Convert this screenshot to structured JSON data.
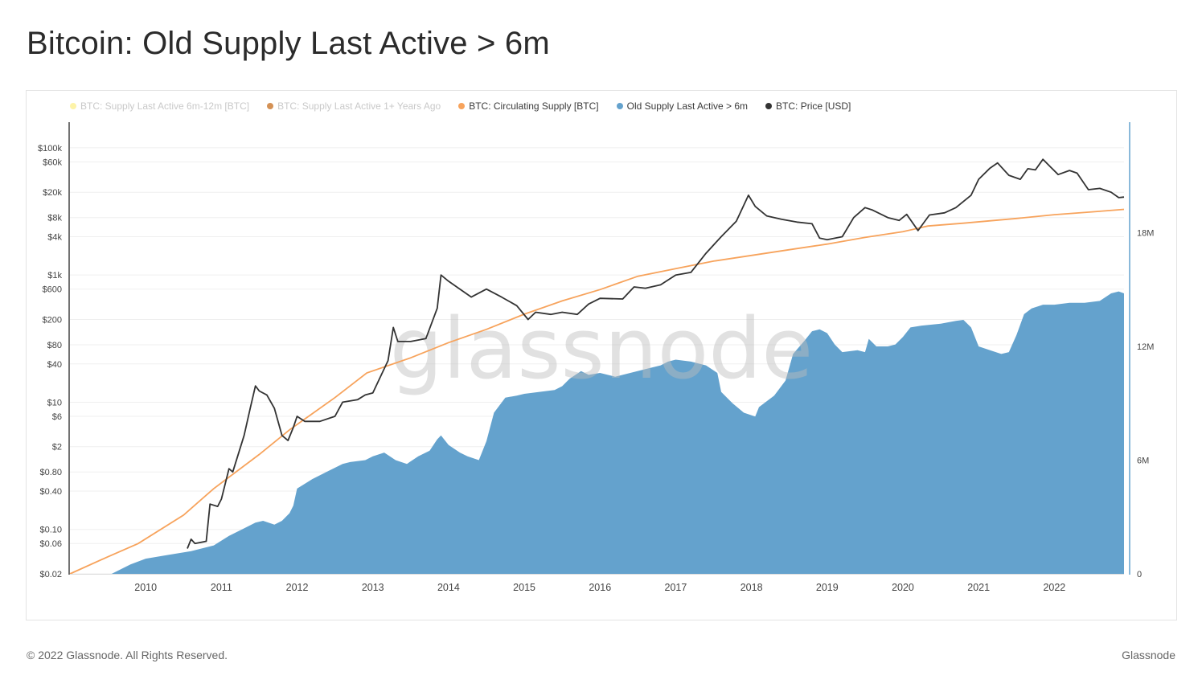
{
  "title": "Bitcoin: Old Supply Last Active > 6m",
  "footer": {
    "copyright": "© 2022 Glassnode. All Rights Reserved.",
    "brand": "Glassnode"
  },
  "watermark": "glassnode",
  "colors": {
    "price": "#333333",
    "circulating": "#f7a35c",
    "old_supply": "#64a2cd",
    "supply_6m_12m": "#fdf3a8",
    "supply_1y": "#d49155",
    "right_axis": "#64a2cd"
  },
  "legend": [
    {
      "label": "BTC: Supply Last Active 6m-12m [BTC]",
      "color": "#fdf3a8",
      "state": "muted"
    },
    {
      "label": "BTC: Supply Last Active 1+ Years Ago",
      "color": "#d49155",
      "state": "muted"
    },
    {
      "label": "BTC: Circulating Supply [BTC]",
      "color": "#f7a35c",
      "state": "active"
    },
    {
      "label": "Old Supply Last Active > 6m",
      "color": "#64a2cd",
      "state": "active"
    },
    {
      "label": "BTC: Price [USD]",
      "color": "#333333",
      "state": "active"
    }
  ],
  "chart_data": {
    "type": "line",
    "title": "Bitcoin: Old Supply Last Active > 6m",
    "x_range": [
      2009.0,
      2022.92
    ],
    "x_ticks": [
      {
        "value": 2010,
        "label": "2010"
      },
      {
        "value": 2011,
        "label": "2011"
      },
      {
        "value": 2012,
        "label": "2012"
      },
      {
        "value": 2013,
        "label": "2013"
      },
      {
        "value": 2014,
        "label": "2014"
      },
      {
        "value": 2015,
        "label": "2015"
      },
      {
        "value": 2016,
        "label": "2016"
      },
      {
        "value": 2017,
        "label": "2017"
      },
      {
        "value": 2018,
        "label": "2018"
      },
      {
        "value": 2019,
        "label": "2019"
      },
      {
        "value": 2020,
        "label": "2020"
      },
      {
        "value": 2021,
        "label": "2021"
      },
      {
        "value": 2022,
        "label": "2022"
      }
    ],
    "left_axis": {
      "scale": "log",
      "range": [
        0.02,
        150000
      ],
      "ticks": [
        {
          "value": 100000,
          "label": "$100k"
        },
        {
          "value": 60000,
          "label": "$60k"
        },
        {
          "value": 20000,
          "label": "$20k"
        },
        {
          "value": 8000,
          "label": "$8k"
        },
        {
          "value": 4000,
          "label": "$4k"
        },
        {
          "value": 1000,
          "label": "$1k"
        },
        {
          "value": 600,
          "label": "$600"
        },
        {
          "value": 200,
          "label": "$200"
        },
        {
          "value": 80,
          "label": "$80"
        },
        {
          "value": 40,
          "label": "$40"
        },
        {
          "value": 10,
          "label": "$10"
        },
        {
          "value": 6,
          "label": "$6"
        },
        {
          "value": 2,
          "label": "$2"
        },
        {
          "value": 0.8,
          "label": "$0.80"
        },
        {
          "value": 0.4,
          "label": "$0.40"
        },
        {
          "value": 0.1,
          "label": "$0.10"
        },
        {
          "value": 0.06,
          "label": "$0.06"
        },
        {
          "value": 0.02,
          "label": "$0.02"
        }
      ]
    },
    "right_axis": {
      "scale": "linear",
      "range": [
        0,
        24000000
      ],
      "ticks": [
        {
          "value": 0,
          "label": "0"
        },
        {
          "value": 6000000,
          "label": "6M"
        },
        {
          "value": 12000000,
          "label": "12M"
        },
        {
          "value": 18000000,
          "label": "18M"
        }
      ]
    },
    "series": [
      {
        "name": "BTC: Circulating Supply [BTC]",
        "axis": "right",
        "kind": "line",
        "points": [
          [
            2009.0,
            0
          ],
          [
            2009.5,
            900000
          ],
          [
            2009.9,
            1600000
          ],
          [
            2010.5,
            3100000
          ],
          [
            2010.9,
            4500000
          ],
          [
            2011.5,
            6300000
          ],
          [
            2011.9,
            7600000
          ],
          [
            2012.5,
            9300000
          ],
          [
            2012.92,
            10600000
          ],
          [
            2013.5,
            11400000
          ],
          [
            2014.0,
            12200000
          ],
          [
            2014.5,
            12900000
          ],
          [
            2015.0,
            13700000
          ],
          [
            2015.5,
            14400000
          ],
          [
            2016.0,
            15000000
          ],
          [
            2016.5,
            15700000
          ],
          [
            2017.0,
            16100000
          ],
          [
            2017.5,
            16500000
          ],
          [
            2018.0,
            16800000
          ],
          [
            2018.5,
            17100000
          ],
          [
            2019.0,
            17400000
          ],
          [
            2019.5,
            17750000
          ],
          [
            2020.0,
            18050000
          ],
          [
            2020.33,
            18350000
          ],
          [
            2020.8,
            18500000
          ],
          [
            2021.5,
            18750000
          ],
          [
            2022.0,
            18950000
          ],
          [
            2022.5,
            19100000
          ],
          [
            2022.92,
            19230000
          ]
        ]
      },
      {
        "name": "Old Supply Last Active > 6m",
        "axis": "right",
        "kind": "area",
        "points": [
          [
            2009.0,
            0
          ],
          [
            2009.55,
            0
          ],
          [
            2009.8,
            500000
          ],
          [
            2010.0,
            800000
          ],
          [
            2010.3,
            1000000
          ],
          [
            2010.6,
            1200000
          ],
          [
            2010.9,
            1500000
          ],
          [
            2011.1,
            2000000
          ],
          [
            2011.3,
            2400000
          ],
          [
            2011.45,
            2700000
          ],
          [
            2011.55,
            2800000
          ],
          [
            2011.7,
            2600000
          ],
          [
            2011.8,
            2800000
          ],
          [
            2011.9,
            3200000
          ],
          [
            2011.95,
            3600000
          ],
          [
            2012.0,
            4500000
          ],
          [
            2012.2,
            5000000
          ],
          [
            2012.4,
            5400000
          ],
          [
            2012.6,
            5800000
          ],
          [
            2012.7,
            5900000
          ],
          [
            2012.9,
            6000000
          ],
          [
            2013.0,
            6200000
          ],
          [
            2013.15,
            6400000
          ],
          [
            2013.3,
            6000000
          ],
          [
            2013.45,
            5800000
          ],
          [
            2013.6,
            6200000
          ],
          [
            2013.75,
            6500000
          ],
          [
            2013.85,
            7100000
          ],
          [
            2013.9,
            7300000
          ],
          [
            2014.0,
            6800000
          ],
          [
            2014.15,
            6400000
          ],
          [
            2014.25,
            6200000
          ],
          [
            2014.4,
            6000000
          ],
          [
            2014.5,
            7000000
          ],
          [
            2014.6,
            8500000
          ],
          [
            2014.75,
            9300000
          ],
          [
            2014.9,
            9400000
          ],
          [
            2015.0,
            9500000
          ],
          [
            2015.2,
            9600000
          ],
          [
            2015.4,
            9700000
          ],
          [
            2015.5,
            9900000
          ],
          [
            2015.6,
            10300000
          ],
          [
            2015.75,
            10700000
          ],
          [
            2015.85,
            10500000
          ],
          [
            2016.0,
            10600000
          ],
          [
            2016.2,
            10400000
          ],
          [
            2016.4,
            10600000
          ],
          [
            2016.6,
            10800000
          ],
          [
            2016.8,
            11000000
          ],
          [
            2016.9,
            11200000
          ],
          [
            2017.0,
            11300000
          ],
          [
            2017.2,
            11200000
          ],
          [
            2017.4,
            11000000
          ],
          [
            2017.55,
            10600000
          ],
          [
            2017.6,
            9600000
          ],
          [
            2017.75,
            9000000
          ],
          [
            2017.9,
            8500000
          ],
          [
            2018.05,
            8300000
          ],
          [
            2018.1,
            8800000
          ],
          [
            2018.3,
            9400000
          ],
          [
            2018.45,
            10200000
          ],
          [
            2018.55,
            11600000
          ],
          [
            2018.7,
            12300000
          ],
          [
            2018.8,
            12800000
          ],
          [
            2018.9,
            12900000
          ],
          [
            2019.0,
            12700000
          ],
          [
            2019.1,
            12100000
          ],
          [
            2019.2,
            11700000
          ],
          [
            2019.4,
            11800000
          ],
          [
            2019.5,
            11700000
          ],
          [
            2019.55,
            12400000
          ],
          [
            2019.65,
            12000000
          ],
          [
            2019.8,
            12000000
          ],
          [
            2019.9,
            12100000
          ],
          [
            2020.0,
            12500000
          ],
          [
            2020.1,
            13000000
          ],
          [
            2020.25,
            13100000
          ],
          [
            2020.5,
            13200000
          ],
          [
            2020.7,
            13350000
          ],
          [
            2020.8,
            13400000
          ],
          [
            2020.9,
            13000000
          ],
          [
            2021.0,
            12000000
          ],
          [
            2021.15,
            11800000
          ],
          [
            2021.3,
            11600000
          ],
          [
            2021.4,
            11700000
          ],
          [
            2021.5,
            12600000
          ],
          [
            2021.6,
            13700000
          ],
          [
            2021.7,
            14000000
          ],
          [
            2021.85,
            14200000
          ],
          [
            2022.0,
            14200000
          ],
          [
            2022.2,
            14300000
          ],
          [
            2022.4,
            14300000
          ],
          [
            2022.6,
            14400000
          ],
          [
            2022.75,
            14800000
          ],
          [
            2022.85,
            14900000
          ],
          [
            2022.92,
            14800000
          ]
        ]
      },
      {
        "name": "BTC: Price [USD]",
        "axis": "left",
        "kind": "line",
        "points": [
          [
            2010.55,
            0.05
          ],
          [
            2010.6,
            0.07
          ],
          [
            2010.65,
            0.06
          ],
          [
            2010.8,
            0.065
          ],
          [
            2010.85,
            0.25
          ],
          [
            2010.95,
            0.23
          ],
          [
            2011.0,
            0.3
          ],
          [
            2011.1,
            0.9
          ],
          [
            2011.15,
            0.8
          ],
          [
            2011.3,
            3
          ],
          [
            2011.38,
            8
          ],
          [
            2011.45,
            18
          ],
          [
            2011.5,
            15
          ],
          [
            2011.6,
            13
          ],
          [
            2011.7,
            8
          ],
          [
            2011.8,
            3
          ],
          [
            2011.88,
            2.5
          ],
          [
            2011.95,
            4
          ],
          [
            2012.0,
            6
          ],
          [
            2012.1,
            5
          ],
          [
            2012.3,
            5
          ],
          [
            2012.5,
            6
          ],
          [
            2012.6,
            10
          ],
          [
            2012.8,
            11
          ],
          [
            2012.9,
            13
          ],
          [
            2013.0,
            14
          ],
          [
            2013.2,
            45
          ],
          [
            2013.27,
            150
          ],
          [
            2013.33,
            90
          ],
          [
            2013.5,
            90
          ],
          [
            2013.7,
            100
          ],
          [
            2013.85,
            300
          ],
          [
            2013.9,
            1000
          ],
          [
            2014.0,
            800
          ],
          [
            2014.15,
            600
          ],
          [
            2014.3,
            450
          ],
          [
            2014.5,
            600
          ],
          [
            2014.7,
            450
          ],
          [
            2014.9,
            330
          ],
          [
            2015.05,
            200
          ],
          [
            2015.15,
            260
          ],
          [
            2015.35,
            240
          ],
          [
            2015.5,
            260
          ],
          [
            2015.7,
            240
          ],
          [
            2015.85,
            350
          ],
          [
            2016.0,
            430
          ],
          [
            2016.3,
            420
          ],
          [
            2016.45,
            650
          ],
          [
            2016.6,
            620
          ],
          [
            2016.8,
            700
          ],
          [
            2017.0,
            1000
          ],
          [
            2017.2,
            1100
          ],
          [
            2017.4,
            2200
          ],
          [
            2017.6,
            4000
          ],
          [
            2017.8,
            7000
          ],
          [
            2017.96,
            18000
          ],
          [
            2018.05,
            12000
          ],
          [
            2018.2,
            8500
          ],
          [
            2018.4,
            7500
          ],
          [
            2018.6,
            6800
          ],
          [
            2018.8,
            6400
          ],
          [
            2018.9,
            3800
          ],
          [
            2019.0,
            3600
          ],
          [
            2019.2,
            4000
          ],
          [
            2019.35,
            8000
          ],
          [
            2019.5,
            11500
          ],
          [
            2019.6,
            10500
          ],
          [
            2019.8,
            8000
          ],
          [
            2019.95,
            7200
          ],
          [
            2020.05,
            9000
          ],
          [
            2020.2,
            5000
          ],
          [
            2020.35,
            8800
          ],
          [
            2020.55,
            9500
          ],
          [
            2020.7,
            11500
          ],
          [
            2020.9,
            18000
          ],
          [
            2021.0,
            32000
          ],
          [
            2021.15,
            48000
          ],
          [
            2021.25,
            58000
          ],
          [
            2021.4,
            37000
          ],
          [
            2021.55,
            32000
          ],
          [
            2021.65,
            47000
          ],
          [
            2021.75,
            45000
          ],
          [
            2021.85,
            66000
          ],
          [
            2021.95,
            50000
          ],
          [
            2022.05,
            38000
          ],
          [
            2022.2,
            44000
          ],
          [
            2022.3,
            40000
          ],
          [
            2022.45,
            22000
          ],
          [
            2022.6,
            23000
          ],
          [
            2022.75,
            20000
          ],
          [
            2022.85,
            16500
          ],
          [
            2022.92,
            16800
          ]
        ]
      }
    ]
  }
}
